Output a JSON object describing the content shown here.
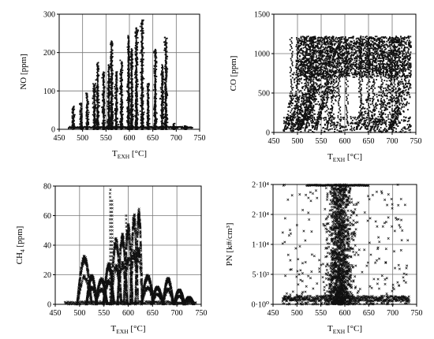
{
  "chart_data": [
    {
      "type": "scatter",
      "xlabel": "T",
      "xlabel_sub": "EXH",
      "xlabel_unit": " [°C]",
      "ylabel": "NO [ppm]",
      "xlim": [
        450,
        750
      ],
      "ylim": [
        0,
        300
      ],
      "x_ticks": [
        "450",
        "500",
        "550",
        "600",
        "650",
        "700",
        "750"
      ],
      "y_ticks": [
        "0",
        "100",
        "200",
        "300"
      ],
      "grid": true,
      "clusters": [
        {
          "x": 480,
          "peak": 60
        },
        {
          "x": 497,
          "peak": 70
        },
        {
          "x": 510,
          "peak": 95
        },
        {
          "x": 525,
          "peak": 120
        },
        {
          "x": 532,
          "peak": 175
        },
        {
          "x": 545,
          "peak": 150
        },
        {
          "x": 556,
          "peak": 170
        },
        {
          "x": 562,
          "peak": 230
        },
        {
          "x": 572,
          "peak": 150
        },
        {
          "x": 583,
          "peak": 180
        },
        {
          "x": 598,
          "peak": 245
        },
        {
          "x": 605,
          "peak": 210
        },
        {
          "x": 615,
          "peak": 265
        },
        {
          "x": 627,
          "peak": 285
        },
        {
          "x": 640,
          "peak": 120
        },
        {
          "x": 655,
          "peak": 210
        },
        {
          "x": 670,
          "peak": 170
        },
        {
          "x": 678,
          "peak": 240
        },
        {
          "x": 695,
          "peak": 15
        },
        {
          "x": 720,
          "peak": 10
        }
      ],
      "baseline": 3,
      "marker": "dot"
    },
    {
      "type": "scatter",
      "xlabel": "T",
      "xlabel_sub": "EXH",
      "xlabel_unit": " [°C]",
      "ylabel": "CO [ppm]",
      "xlim": [
        450,
        750
      ],
      "ylim": [
        0,
        1500
      ],
      "x_ticks": [
        "450",
        "500",
        "550",
        "600",
        "650",
        "700",
        "750"
      ],
      "y_ticks": [
        "0",
        "500",
        "1000",
        "1500"
      ],
      "grid": true,
      "band": {
        "x_start": 470,
        "x_end": 740,
        "low": 0,
        "high": 1200,
        "upper_fill_start": 500
      },
      "marker": "dot"
    },
    {
      "type": "scatter",
      "xlabel": "T",
      "xlabel_sub": "EXH",
      "xlabel_unit": " [°C]",
      "ylabel": "CH",
      "ylabel_sub": "4",
      "ylabel_unit": " [ppm]",
      "xlim": [
        450,
        750
      ],
      "ylim": [
        0,
        80
      ],
      "x_ticks": [
        "450",
        "500",
        "550",
        "600",
        "650",
        "700",
        "750"
      ],
      "y_ticks": [
        "0",
        "20",
        "40",
        "60",
        "80"
      ],
      "grid": true,
      "loops": [
        {
          "x": 510,
          "peak": 33,
          "width": 30
        },
        {
          "x": 525,
          "peak": 20,
          "width": 22
        },
        {
          "x": 545,
          "peak": 18,
          "width": 24
        },
        {
          "x": 560,
          "peak": 28,
          "width": 22
        },
        {
          "x": 575,
          "peak": 45,
          "width": 22
        },
        {
          "x": 588,
          "peak": 48,
          "width": 20
        },
        {
          "x": 600,
          "peak": 55,
          "width": 18
        },
        {
          "x": 612,
          "peak": 62,
          "width": 16
        },
        {
          "x": 622,
          "peak": 65,
          "width": 14
        },
        {
          "x": 640,
          "peak": 20,
          "width": 26
        },
        {
          "x": 660,
          "peak": 12,
          "width": 24
        },
        {
          "x": 682,
          "peak": 18,
          "width": 22
        },
        {
          "x": 705,
          "peak": 10,
          "width": 22
        },
        {
          "x": 725,
          "peak": 5,
          "width": 20
        }
      ],
      "spikes": [
        {
          "x": 563,
          "peak": 78
        },
        {
          "x": 567,
          "peak": 72
        },
        {
          "x": 596,
          "peak": 62
        }
      ],
      "marker": "x"
    },
    {
      "type": "scatter",
      "xlabel": "T",
      "xlabel_sub": "EXH",
      "xlabel_unit": " [°C]",
      "ylabel": "PN [k#/cm³]",
      "xlim": [
        450,
        750
      ],
      "ylim": [
        0,
        20000
      ],
      "x_ticks": [
        "450",
        "500",
        "550",
        "600",
        "650",
        "700",
        "750"
      ],
      "y_ticks": [
        "0·10⁰",
        "5·10³",
        "1·10⁴",
        "2·10⁴",
        "2·10⁴"
      ],
      "grid": true,
      "dense_center": 590,
      "dense_sd": 25,
      "extent": [
        470,
        735
      ],
      "marker": "x"
    }
  ]
}
